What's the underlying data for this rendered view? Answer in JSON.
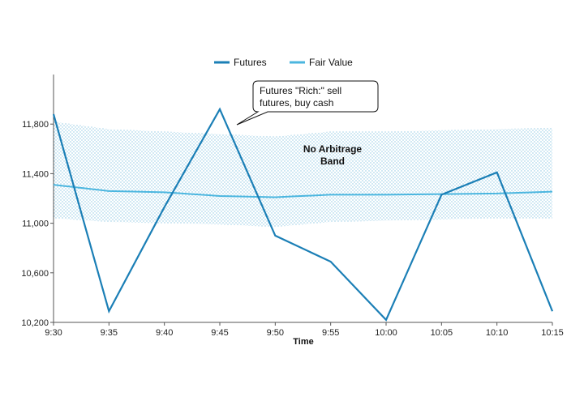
{
  "chart_data": {
    "type": "line",
    "xlabel": "Time",
    "ylabel": "",
    "x": [
      "9:30",
      "9:35",
      "9:40",
      "9:45",
      "9:50",
      "9:55",
      "10:00",
      "10:05",
      "10:10",
      "10:15"
    ],
    "ylim": [
      10200,
      12200
    ],
    "yticks": [
      10200,
      10600,
      11000,
      11400,
      11800
    ],
    "ytick_labels": [
      "10,200",
      "10,600",
      "11,000",
      "11,400",
      "11,800"
    ],
    "grid": false,
    "legend_position": "top-center",
    "series": [
      {
        "name": "Futures",
        "color": "#1b7fb6",
        "values": [
          11880,
          10290,
          11130,
          11920,
          10900,
          10690,
          10220,
          11230,
          11410,
          10290
        ]
      },
      {
        "name": "Fair Value",
        "color": "#4bb6df",
        "values": [
          11310,
          11260,
          11250,
          11220,
          11210,
          11230,
          11230,
          11235,
          11240,
          11255
        ]
      }
    ],
    "band": {
      "label_lines": [
        "No Arbitrage",
        "Band"
      ],
      "color": "#8cc6e2",
      "upper": [
        11820,
        11760,
        11740,
        11720,
        11700,
        11740,
        11740,
        11750,
        11760,
        11770
      ],
      "lower": [
        11040,
        11010,
        11000,
        10990,
        10970,
        11010,
        11020,
        11030,
        11040,
        11040
      ]
    },
    "annotation": {
      "lines": [
        "Futures \"Rich:\" sell",
        "futures, buy cash"
      ]
    }
  }
}
